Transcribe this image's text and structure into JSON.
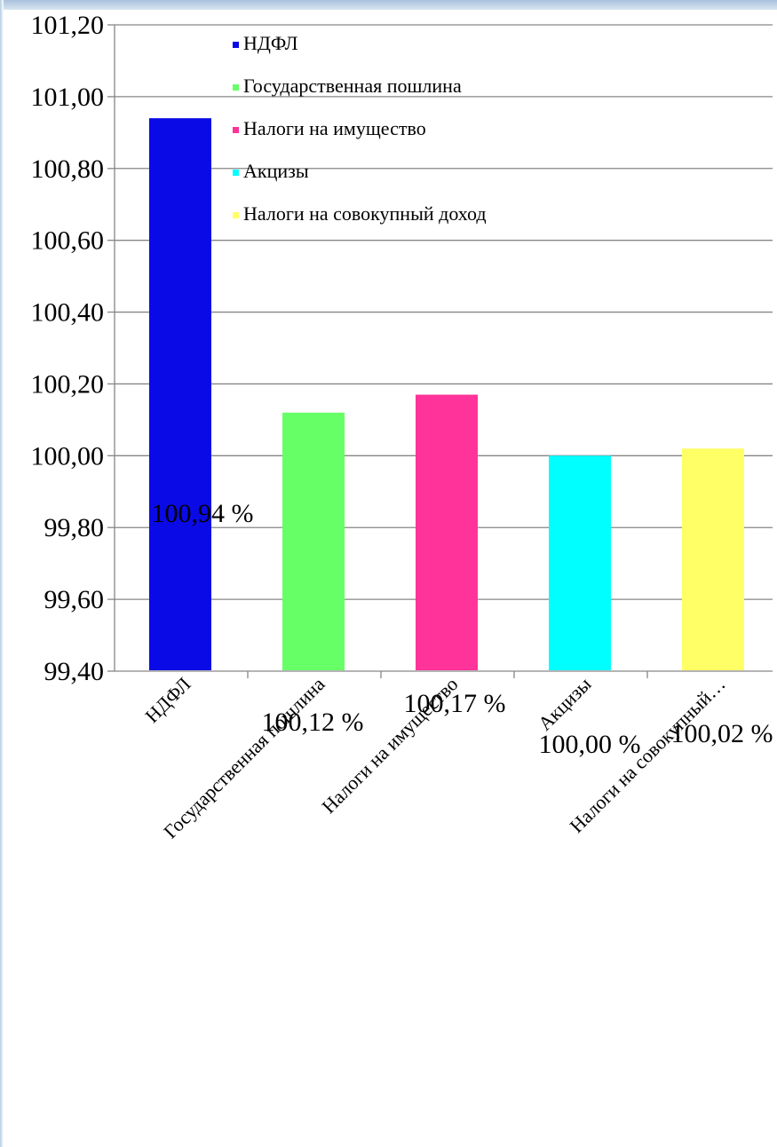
{
  "chart_data": {
    "type": "bar",
    "categories": [
      "НДФЛ",
      "Государственная пошлина",
      "Налоги на имущество",
      "Акцизы",
      "Налоги на совокупный доход"
    ],
    "category_tick_labels": [
      "НДФЛ",
      "Государственная пошлина",
      "Налоги на имущество",
      "Акцизы",
      "Налоги на совокупный…"
    ],
    "values": [
      100.94,
      100.12,
      100.17,
      100.0,
      100.02
    ],
    "data_labels": [
      "100,94 %",
      "100,12 %",
      "100,17 %",
      "100,00 %",
      "100,02 %"
    ],
    "colors": [
      "#0a0ae6",
      "#66ff66",
      "#ff3399",
      "#00ffff",
      "#ffff66"
    ],
    "ylim": [
      99.4,
      101.2
    ],
    "yticks": [
      99.4,
      99.6,
      99.8,
      100.0,
      100.2,
      100.4,
      100.6,
      100.8,
      101.0,
      101.2
    ],
    "ytick_labels": [
      "99,40",
      "99,60",
      "99,80",
      "100,00",
      "100,20",
      "100,40",
      "100,60",
      "100,80",
      "101,00",
      "101,20"
    ],
    "grid": true,
    "legend_placement": "top",
    "legend": [
      "НДФЛ",
      "Государственная пошлина",
      "Налоги на имущество",
      "Акцизы",
      "Налоги на совокупный доход"
    ]
  }
}
